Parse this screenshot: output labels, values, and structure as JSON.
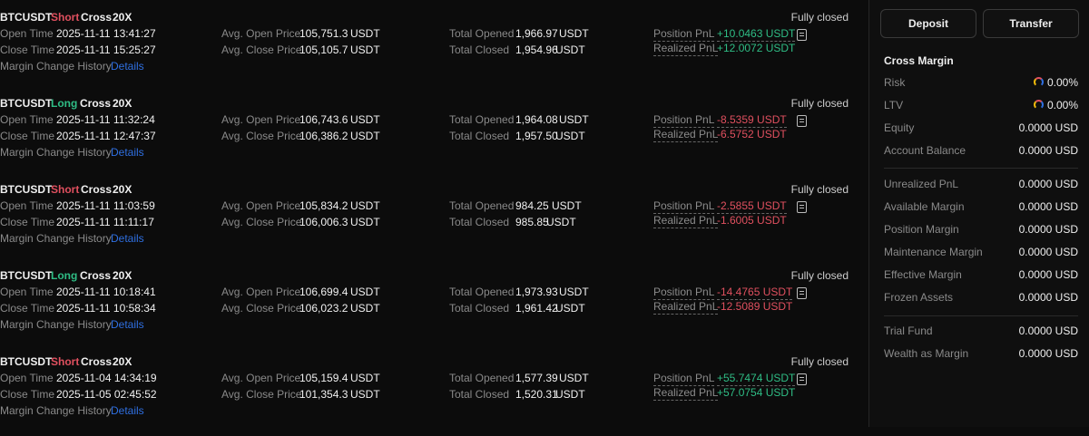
{
  "labels": {
    "open_time": "Open Time",
    "close_time": "Close Time",
    "margin_history": "Margin Change History",
    "details": "Details",
    "avg_open": "Avg. Open Price",
    "avg_close": "Avg. Close Price",
    "total_opened": "Total Opened",
    "total_closed": "Total Closed",
    "position_pnl": "Position PnL",
    "realized_pnl": "Realized PnL",
    "unit": "USDT"
  },
  "trades": [
    {
      "symbol": "BTCUSDT",
      "side": "Short",
      "mode": "Cross",
      "leverage": "20X",
      "status": "Fully closed",
      "open_time": "2025-11-11 13:41:27",
      "close_time": "2025-11-11 15:25:27",
      "avg_open": "105,751.3",
      "avg_close": "105,105.7",
      "total_opened": "1,966.97",
      "total_closed": "1,954.96",
      "position_pnl": "+10.0463 USDT",
      "realized_pnl": "+12.0072 USDT"
    },
    {
      "symbol": "BTCUSDT",
      "side": "Long",
      "mode": "Cross",
      "leverage": "20X",
      "status": "Fully closed",
      "open_time": "2025-11-11 11:32:24",
      "close_time": "2025-11-11 12:47:37",
      "avg_open": "106,743.6",
      "avg_close": "106,386.2",
      "total_opened": "1,964.08",
      "total_closed": "1,957.50",
      "position_pnl": "-8.5359 USDT",
      "realized_pnl": "-6.5752 USDT"
    },
    {
      "symbol": "BTCUSDT",
      "side": "Short",
      "mode": "Cross",
      "leverage": "20X",
      "status": "Fully closed",
      "open_time": "2025-11-11 11:03:59",
      "close_time": "2025-11-11 11:11:17",
      "avg_open": "105,834.2",
      "avg_close": "106,006.3",
      "total_opened": "984.25",
      "total_closed": "985.85",
      "position_pnl": "-2.5855 USDT",
      "realized_pnl": "-1.6005 USDT"
    },
    {
      "symbol": "BTCUSDT",
      "side": "Long",
      "mode": "Cross",
      "leverage": "20X",
      "status": "Fully closed",
      "open_time": "2025-11-11 10:18:41",
      "close_time": "2025-11-11 10:58:34",
      "avg_open": "106,699.4",
      "avg_close": "106,023.2",
      "total_opened": "1,973.93",
      "total_closed": "1,961.42",
      "position_pnl": "-14.4765 USDT",
      "realized_pnl": "-12.5089 USDT"
    },
    {
      "symbol": "BTCUSDT",
      "side": "Short",
      "mode": "Cross",
      "leverage": "20X",
      "status": "Fully closed",
      "open_time": "2025-11-04 14:34:19",
      "close_time": "2025-11-05 02:45:52",
      "avg_open": "105,159.4",
      "avg_close": "101,354.3",
      "total_opened": "1,577.39",
      "total_closed": "1,520.31",
      "position_pnl": "+55.7474 USDT",
      "realized_pnl": "+57.0754 USDT"
    }
  ],
  "panel": {
    "deposit": "Deposit",
    "transfer": "Transfer",
    "title": "Cross Margin",
    "rows_a": [
      {
        "label": "Risk",
        "value": "0.00%",
        "gauge": true
      },
      {
        "label": "LTV",
        "value": "0.00%",
        "gauge": true
      },
      {
        "label": "Equity",
        "value": "0.0000 USD"
      },
      {
        "label": "Account Balance",
        "value": "0.0000 USD"
      }
    ],
    "rows_b": [
      {
        "label": "Unrealized PnL",
        "value": "0.0000 USD"
      },
      {
        "label": "Available Margin",
        "value": "0.0000 USD"
      },
      {
        "label": "Position Margin",
        "value": "0.0000 USD"
      },
      {
        "label": "Maintenance Margin",
        "value": "0.0000 USD"
      },
      {
        "label": "Effective Margin",
        "value": "0.0000 USD"
      },
      {
        "label": "Frozen Assets",
        "value": "0.0000 USD"
      }
    ],
    "rows_c": [
      {
        "label": "Trial Fund",
        "value": "0.0000 USD"
      },
      {
        "label": "Wealth as Margin",
        "value": "0.0000 USD"
      }
    ]
  },
  "colors": {
    "short": "#e0505f",
    "long": "#2fbd85",
    "link": "#2f6fe0",
    "background": "#0c0c0c"
  }
}
